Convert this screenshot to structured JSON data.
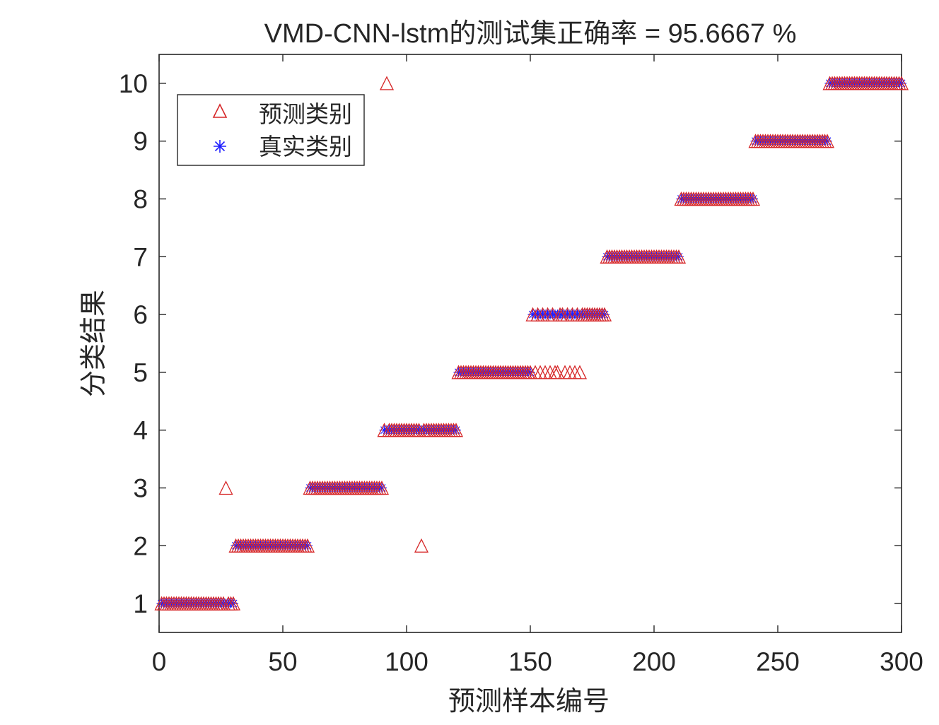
{
  "chart_data": {
    "type": "scatter",
    "title": "VMD-CNN-lstm的测试集正确率 = 95.6667 %",
    "xlabel": "预测样本编号",
    "ylabel": "分类结果",
    "xlim": [
      0,
      300
    ],
    "ylim": [
      0.5,
      10.5
    ],
    "xticks": [
      0,
      50,
      100,
      150,
      200,
      250,
      300
    ],
    "yticks": [
      1,
      2,
      3,
      4,
      5,
      6,
      7,
      8,
      9,
      10
    ],
    "xtick_labels": [
      "0",
      "50",
      "100",
      "150",
      "200",
      "250",
      "300"
    ],
    "ytick_labels": [
      "1",
      "2",
      "3",
      "4",
      "5",
      "6",
      "7",
      "8",
      "9",
      "10"
    ],
    "grid": false,
    "legend_position": "top-left",
    "samples_per_class": 30,
    "series": [
      {
        "name": "预测类别",
        "marker": "triangle",
        "color": "#d62728",
        "misclassified": [
          {
            "x": 27,
            "y": 3
          },
          {
            "x": 92,
            "y": 10
          },
          {
            "x": 106,
            "y": 2
          },
          {
            "x": 152,
            "y": 5
          },
          {
            "x": 154,
            "y": 5
          },
          {
            "x": 158,
            "y": 5
          },
          {
            "x": 161,
            "y": 5
          },
          {
            "x": 164,
            "y": 5
          },
          {
            "x": 166,
            "y": 5
          },
          {
            "x": 170,
            "y": 5
          },
          {
            "x": 156,
            "y": 5
          },
          {
            "x": 168,
            "y": 5
          },
          {
            "x": 160,
            "y": 5
          }
        ]
      },
      {
        "name": "真实类别",
        "marker": "asterisk",
        "color": "#1f1fff"
      }
    ]
  }
}
